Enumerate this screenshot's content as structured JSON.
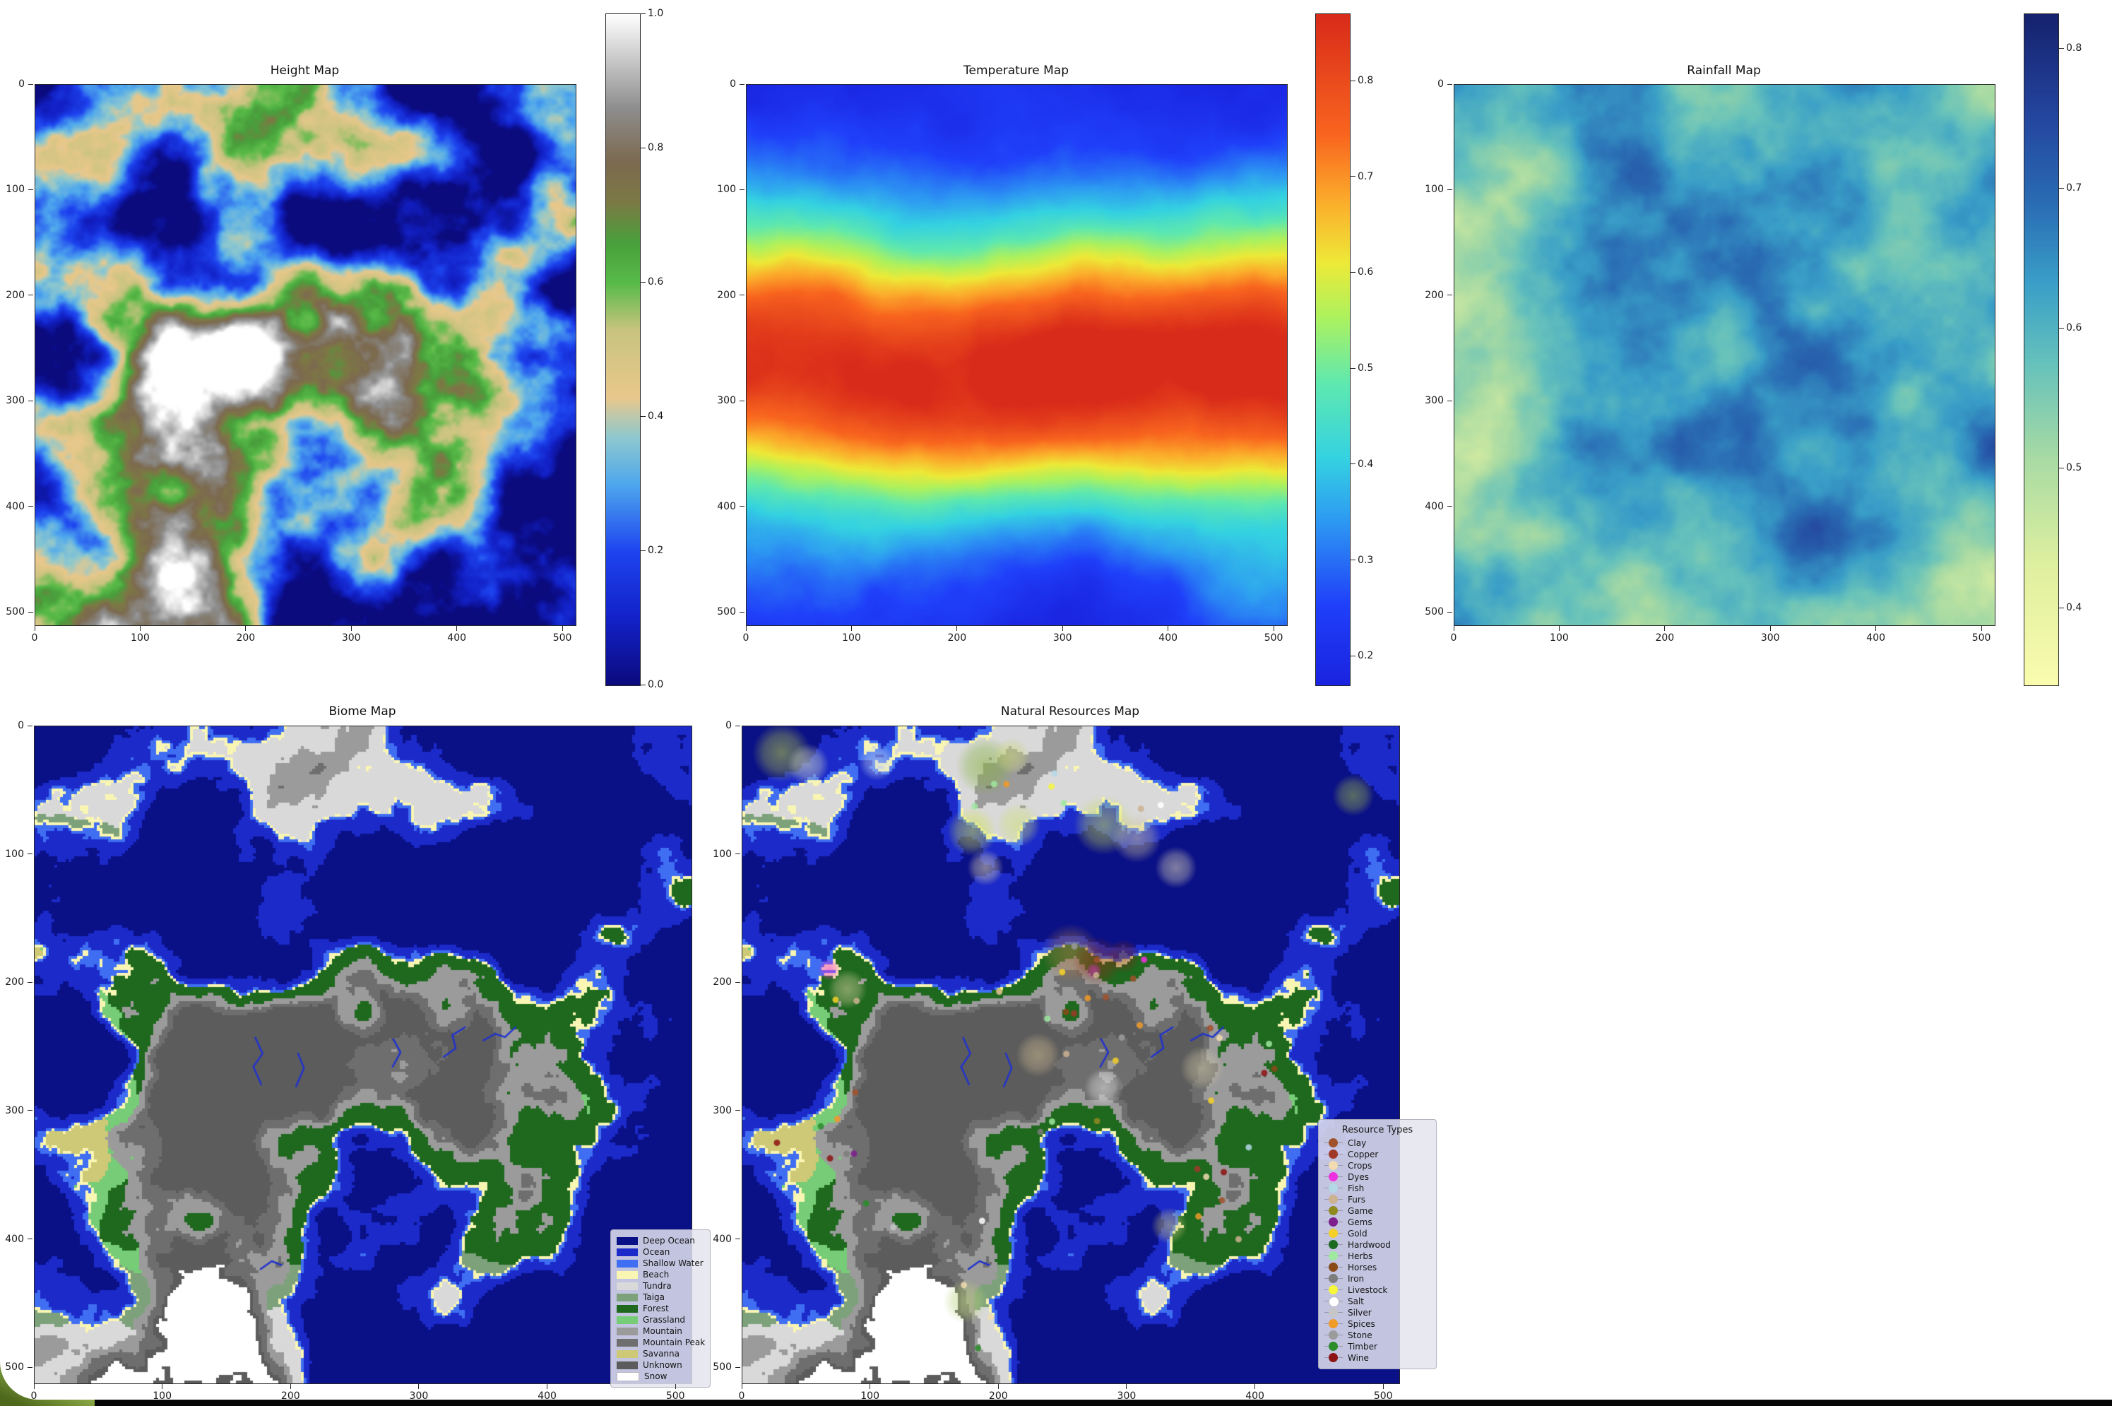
{
  "frame": {
    "background": "#ffffff",
    "bottom_bar_color": "#060606",
    "corner_gradient": [
      "#c9da8d",
      "#4f691c"
    ]
  },
  "chart_data": [
    {
      "id": "height",
      "type": "heatmap",
      "title": "Height Map",
      "x_ticks": [
        "0",
        "100",
        "200",
        "300",
        "400",
        "500"
      ],
      "y_ticks": [
        "0",
        "100",
        "200",
        "300",
        "400",
        "500"
      ],
      "x_range": [
        0,
        512
      ],
      "y_range": [
        0,
        512
      ],
      "colorbar": {
        "range": [
          0.0,
          1.0
        ],
        "ticks": [
          "1.0",
          "0.8",
          "0.6",
          "0.4",
          "0.2",
          "0.0"
        ],
        "tick_values": [
          1.0,
          0.8,
          0.6,
          0.4,
          0.2,
          0.0
        ],
        "stops": [
          [
            0.0,
            "#0b0b7e"
          ],
          [
            0.1,
            "#1322c8"
          ],
          [
            0.2,
            "#1e45f0"
          ],
          [
            0.3,
            "#4fa8ee"
          ],
          [
            0.37,
            "#8fc9cf"
          ],
          [
            0.43,
            "#eac88c"
          ],
          [
            0.53,
            "#c9c480"
          ],
          [
            0.6,
            "#58bb48"
          ],
          [
            0.66,
            "#49a03c"
          ],
          [
            0.72,
            "#7d7a45"
          ],
          [
            0.78,
            "#7c6a50"
          ],
          [
            0.86,
            "#8e8e8e"
          ],
          [
            0.94,
            "#cfcfcf"
          ],
          [
            1.0,
            "#ffffff"
          ]
        ]
      },
      "noise": {
        "seed": 11,
        "octaves": 6,
        "scale": 4.0,
        "stretch": 2.2,
        "bias": 0.13,
        "falloff": 0.42,
        "pow": 1.7
      }
    },
    {
      "id": "temperature",
      "type": "heatmap",
      "title": "Temperature Map",
      "x_ticks": [
        "0",
        "100",
        "200",
        "300",
        "400",
        "500"
      ],
      "y_ticks": [
        "0",
        "100",
        "200",
        "300",
        "400",
        "500"
      ],
      "x_range": [
        0,
        512
      ],
      "y_range": [
        0,
        512
      ],
      "colorbar": {
        "range": [
          0.17,
          0.87
        ],
        "ticks": [
          "0.8",
          "0.7",
          "0.6",
          "0.5",
          "0.4",
          "0.3",
          "0.2"
        ],
        "tick_values": [
          0.8,
          0.7,
          0.6,
          0.5,
          0.4,
          0.3,
          0.2
        ],
        "stops": [
          [
            0.0,
            "#1a23e0"
          ],
          [
            0.12,
            "#2040fa"
          ],
          [
            0.25,
            "#2e9df2"
          ],
          [
            0.34,
            "#35d3e2"
          ],
          [
            0.45,
            "#5fe9b0"
          ],
          [
            0.55,
            "#aef25e"
          ],
          [
            0.63,
            "#eeea38"
          ],
          [
            0.72,
            "#fcae2c"
          ],
          [
            0.82,
            "#f9661f"
          ],
          [
            1.0,
            "#d92b1a"
          ]
        ]
      },
      "field": {
        "seed": 23,
        "octaves": 6,
        "scale": 3.2,
        "base": 0.205,
        "amp": 0.655,
        "center": 0.515,
        "width": 0.19,
        "noise": 0.26
      }
    },
    {
      "id": "rainfall",
      "type": "heatmap",
      "title": "Rainfall Map",
      "x_ticks": [
        "0",
        "100",
        "200",
        "300",
        "400",
        "500"
      ],
      "y_ticks": [
        "0",
        "100",
        "200",
        "300",
        "400",
        "500"
      ],
      "x_range": [
        0,
        512
      ],
      "y_range": [
        0,
        512
      ],
      "colorbar": {
        "range": [
          0.345,
          0.825
        ],
        "ticks": [
          "0.8",
          "0.7",
          "0.6",
          "0.5",
          "0.4"
        ],
        "tick_values": [
          0.8,
          0.7,
          0.6,
          0.5,
          0.4
        ],
        "stops": [
          [
            0.0,
            "#fbfcae"
          ],
          [
            0.18,
            "#dff0a0"
          ],
          [
            0.34,
            "#a8dba4"
          ],
          [
            0.48,
            "#66c2bc"
          ],
          [
            0.6,
            "#3a9fc8"
          ],
          [
            0.72,
            "#2a6cb4"
          ],
          [
            0.85,
            "#24459e"
          ],
          [
            1.0,
            "#16226e"
          ]
        ]
      },
      "field": {
        "seed": 37,
        "octaves": 6,
        "scale": 3.0,
        "base": 0.575,
        "noise": 0.62
      }
    },
    {
      "id": "biome",
      "type": "categorical-map",
      "title": "Biome Map",
      "x_ticks": [
        "0",
        "100",
        "200",
        "300",
        "400",
        "500"
      ],
      "y_ticks": [
        "0",
        "100",
        "200",
        "300",
        "400",
        "500"
      ],
      "x_range": [
        0,
        512
      ],
      "y_range": [
        0,
        512
      ],
      "legend": {
        "items": [
          {
            "label": "Deep Ocean",
            "color": "#0a1086"
          },
          {
            "label": "Ocean",
            "color": "#1b2ac9"
          },
          {
            "label": "Shallow Water",
            "color": "#3f6ef2"
          },
          {
            "label": "Beach",
            "color": "#f9f6b4"
          },
          {
            "label": "Tundra",
            "color": "#d9d9d9"
          },
          {
            "label": "Taiga",
            "color": "#7da27b"
          },
          {
            "label": "Forest",
            "color": "#1e691e"
          },
          {
            "label": "Grassland",
            "color": "#77cd77"
          },
          {
            "label": "Mountain",
            "color": "#9b9b9b"
          },
          {
            "label": "Mountain Peak",
            "color": "#6e6e6e"
          },
          {
            "label": "Savanna",
            "color": "#cdc976"
          },
          {
            "label": "Unknown",
            "color": "#5c5c5c"
          },
          {
            "label": "Snow",
            "color": "#ffffff"
          }
        ]
      },
      "thresholds": {
        "deep": 0.3,
        "ocean": 0.408,
        "shallow": 0.438,
        "beach": 0.458,
        "mountain": 0.615,
        "peak": 0.7,
        "unknown": 0.78,
        "snow_h": 0.82,
        "snow_t": 0.4,
        "tundra_t": 0.3,
        "taiga_t": 0.385,
        "forest_r": 0.56,
        "savanna_t": 0.6,
        "savanna_r": 0.52
      },
      "river_color": "#2233cc",
      "rivers": [
        [
          [
            0.345,
            0.545
          ],
          [
            0.333,
            0.518
          ],
          [
            0.347,
            0.498
          ],
          [
            0.336,
            0.474
          ]
        ],
        [
          [
            0.398,
            0.548
          ],
          [
            0.41,
            0.52
          ],
          [
            0.401,
            0.498
          ]
        ],
        [
          [
            0.545,
            0.518
          ],
          [
            0.557,
            0.496
          ],
          [
            0.546,
            0.476
          ]
        ],
        [
          [
            0.623,
            0.503
          ],
          [
            0.641,
            0.49
          ],
          [
            0.636,
            0.47
          ],
          [
            0.655,
            0.458
          ]
        ],
        [
          [
            0.683,
            0.478
          ],
          [
            0.701,
            0.468
          ],
          [
            0.716,
            0.473
          ],
          [
            0.732,
            0.458
          ]
        ],
        [
          [
            0.344,
            0.826
          ],
          [
            0.361,
            0.814
          ],
          [
            0.376,
            0.82
          ]
        ]
      ]
    },
    {
      "id": "resources",
      "type": "categorical-map",
      "title": "Natural Resources Map",
      "x_ticks": [
        "0",
        "100",
        "200",
        "300",
        "400",
        "500"
      ],
      "y_ticks": [
        "0",
        "100",
        "200",
        "300",
        "400",
        "500"
      ],
      "x_range": [
        0,
        512
      ],
      "y_range": [
        0,
        512
      ],
      "legend": {
        "title": "Resource Types",
        "items": [
          {
            "label": "Clay",
            "color": "#a0522d"
          },
          {
            "label": "Copper",
            "color": "#a03a28"
          },
          {
            "label": "Crops",
            "color": "#f0dcb0"
          },
          {
            "label": "Dyes",
            "color": "#ee30e0"
          },
          {
            "label": "Fish",
            "color": "#b5d8e6"
          },
          {
            "label": "Furs",
            "color": "#cbb291"
          },
          {
            "label": "Game",
            "color": "#8f8a20"
          },
          {
            "label": "Gems",
            "color": "#7d1f8d"
          },
          {
            "label": "Gold",
            "color": "#f5d028"
          },
          {
            "label": "Hardwood",
            "color": "#1d6b21"
          },
          {
            "label": "Herbs",
            "color": "#9fe89f"
          },
          {
            "label": "Horses",
            "color": "#8a4a17"
          },
          {
            "label": "Iron",
            "color": "#7d7d7d"
          },
          {
            "label": "Livestock",
            "color": "#f6f63c"
          },
          {
            "label": "Salt",
            "color": "#ffffff"
          },
          {
            "label": "Silver",
            "color": "#c6c6c6"
          },
          {
            "label": "Spices",
            "color": "#f09a28"
          },
          {
            "label": "Stone",
            "color": "#9b9b9b"
          },
          {
            "label": "Timber",
            "color": "#2a8c2a"
          },
          {
            "label": "Wine",
            "color": "#8c1414"
          }
        ]
      },
      "overlays": [
        {
          "x": 0.06,
          "y": 0.04,
          "r": 0.045,
          "color": "#b9cf47"
        },
        {
          "x": 0.1,
          "y": 0.058,
          "r": 0.032,
          "color": "#dde6c0"
        },
        {
          "x": 0.205,
          "y": 0.055,
          "r": 0.028,
          "color": "#c8d8e8"
        },
        {
          "x": 0.37,
          "y": 0.06,
          "r": 0.045,
          "color": "#86b23e"
        },
        {
          "x": 0.41,
          "y": 0.045,
          "r": 0.028,
          "color": "#cfd87a"
        },
        {
          "x": 0.35,
          "y": 0.16,
          "r": 0.038,
          "color": "#d3e44c"
        },
        {
          "x": 0.42,
          "y": 0.15,
          "r": 0.034,
          "color": "#cfe07a"
        },
        {
          "x": 0.37,
          "y": 0.215,
          "r": 0.028,
          "color": "#e4d9b0"
        },
        {
          "x": 0.55,
          "y": 0.15,
          "r": 0.046,
          "color": "#c8dc55"
        },
        {
          "x": 0.6,
          "y": 0.17,
          "r": 0.038,
          "color": "#cfc49a"
        },
        {
          "x": 0.66,
          "y": 0.215,
          "r": 0.032,
          "color": "#e0d8b8"
        },
        {
          "x": 0.93,
          "y": 0.105,
          "r": 0.032,
          "color": "#9bb54a"
        },
        {
          "x": 0.5,
          "y": 0.345,
          "r": 0.045,
          "color": "#a87848"
        },
        {
          "x": 0.54,
          "y": 0.358,
          "r": 0.038,
          "color": "#8c3018"
        },
        {
          "x": 0.58,
          "y": 0.35,
          "r": 0.026,
          "color": "#7a2a16"
        },
        {
          "x": 0.132,
          "y": 0.37,
          "r": 0.017,
          "color": "#f02fd8"
        },
        {
          "x": 0.535,
          "y": 0.372,
          "r": 0.012,
          "color": "#f02fd8"
        },
        {
          "x": 0.16,
          "y": 0.4,
          "r": 0.03,
          "color": "#d8cfa0"
        },
        {
          "x": 0.45,
          "y": 0.5,
          "r": 0.034,
          "color": "#cdb892"
        },
        {
          "x": 0.55,
          "y": 0.55,
          "r": 0.03,
          "color": "#e4e4e4"
        },
        {
          "x": 0.7,
          "y": 0.52,
          "r": 0.034,
          "color": "#cfc8a8"
        },
        {
          "x": 0.34,
          "y": 0.875,
          "r": 0.034,
          "color": "#b8d078"
        },
        {
          "x": 0.65,
          "y": 0.76,
          "r": 0.028,
          "color": "#c8c87a"
        }
      ],
      "dots": {
        "count": 58,
        "seed": 91,
        "radius": 4.5
      }
    }
  ]
}
